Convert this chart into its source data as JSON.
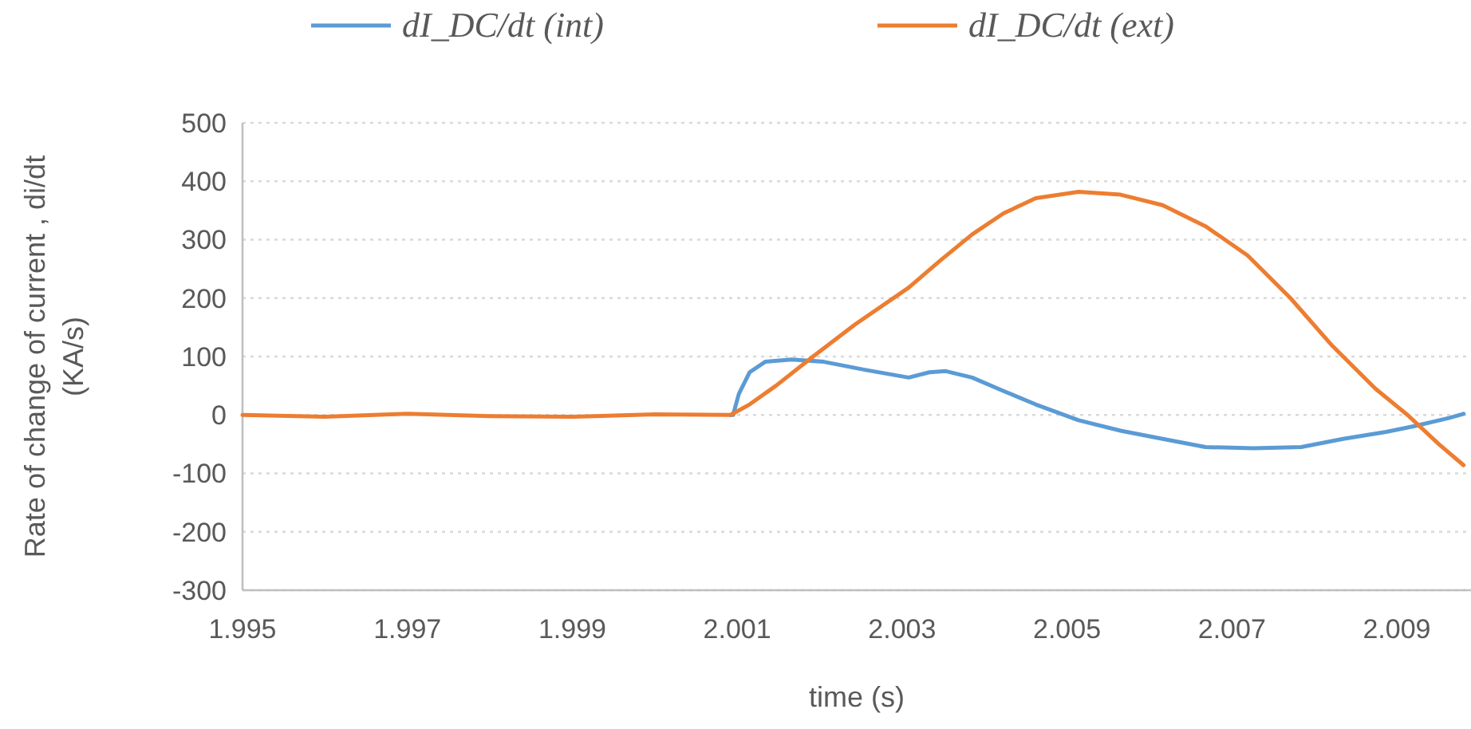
{
  "chart_data": {
    "type": "line",
    "xlabel": "time (s)",
    "ylabel": "Rate of change of current , di/dt (KA/s)",
    "xlim": [
      1.995,
      2.0099
    ],
    "xticks": [
      1.995,
      1.997,
      1.999,
      2.001,
      2.003,
      2.005,
      2.007,
      2.009
    ],
    "ylim": [
      -300,
      500
    ],
    "yticks": [
      -300,
      -200,
      -100,
      0,
      100,
      200,
      300,
      400,
      500
    ],
    "grid": "y",
    "legend": "top",
    "line_style": "solid",
    "marker": "none",
    "series": [
      {
        "name": "dI_DC/dt (int)",
        "color": "#5b9bd5",
        "x": [
          2.00092,
          2.00095,
          2.00102,
          2.00115,
          2.00134,
          2.00166,
          2.00205,
          2.00256,
          2.00308,
          2.00333,
          2.00353,
          2.00385,
          2.00423,
          2.00462,
          2.00514,
          2.00565,
          2.00616,
          2.00668,
          2.00726,
          2.00784,
          2.00835,
          2.00887,
          2.00925,
          2.00964,
          2.00981
        ],
        "values": [
          0,
          0,
          36,
          73,
          91,
          95,
          91,
          77,
          64,
          73,
          75,
          64,
          41,
          18,
          -9,
          -27,
          -41,
          -55,
          -57,
          -55,
          -41,
          -29,
          -18,
          -5,
          2
        ]
      },
      {
        "name": "dI_DC/dt (ext)",
        "color": "#ed7d31",
        "x": [
          1.995,
          1.996,
          1.997,
          1.998,
          1.999,
          2.0,
          2.00092,
          2.00115,
          2.00147,
          2.00192,
          2.00243,
          2.00308,
          2.00346,
          2.00385,
          2.00423,
          2.00462,
          2.00514,
          2.00565,
          2.00616,
          2.00668,
          2.00719,
          2.00771,
          2.00822,
          2.00874,
          2.00913,
          2.00951,
          2.00981
        ],
        "values": [
          0,
          -3,
          2,
          -2,
          -3,
          1,
          0,
          18,
          50,
          100,
          155,
          218,
          264,
          309,
          345,
          371,
          382,
          377,
          359,
          323,
          273,
          200,
          118,
          45,
          0,
          -50,
          -86
        ]
      }
    ]
  }
}
